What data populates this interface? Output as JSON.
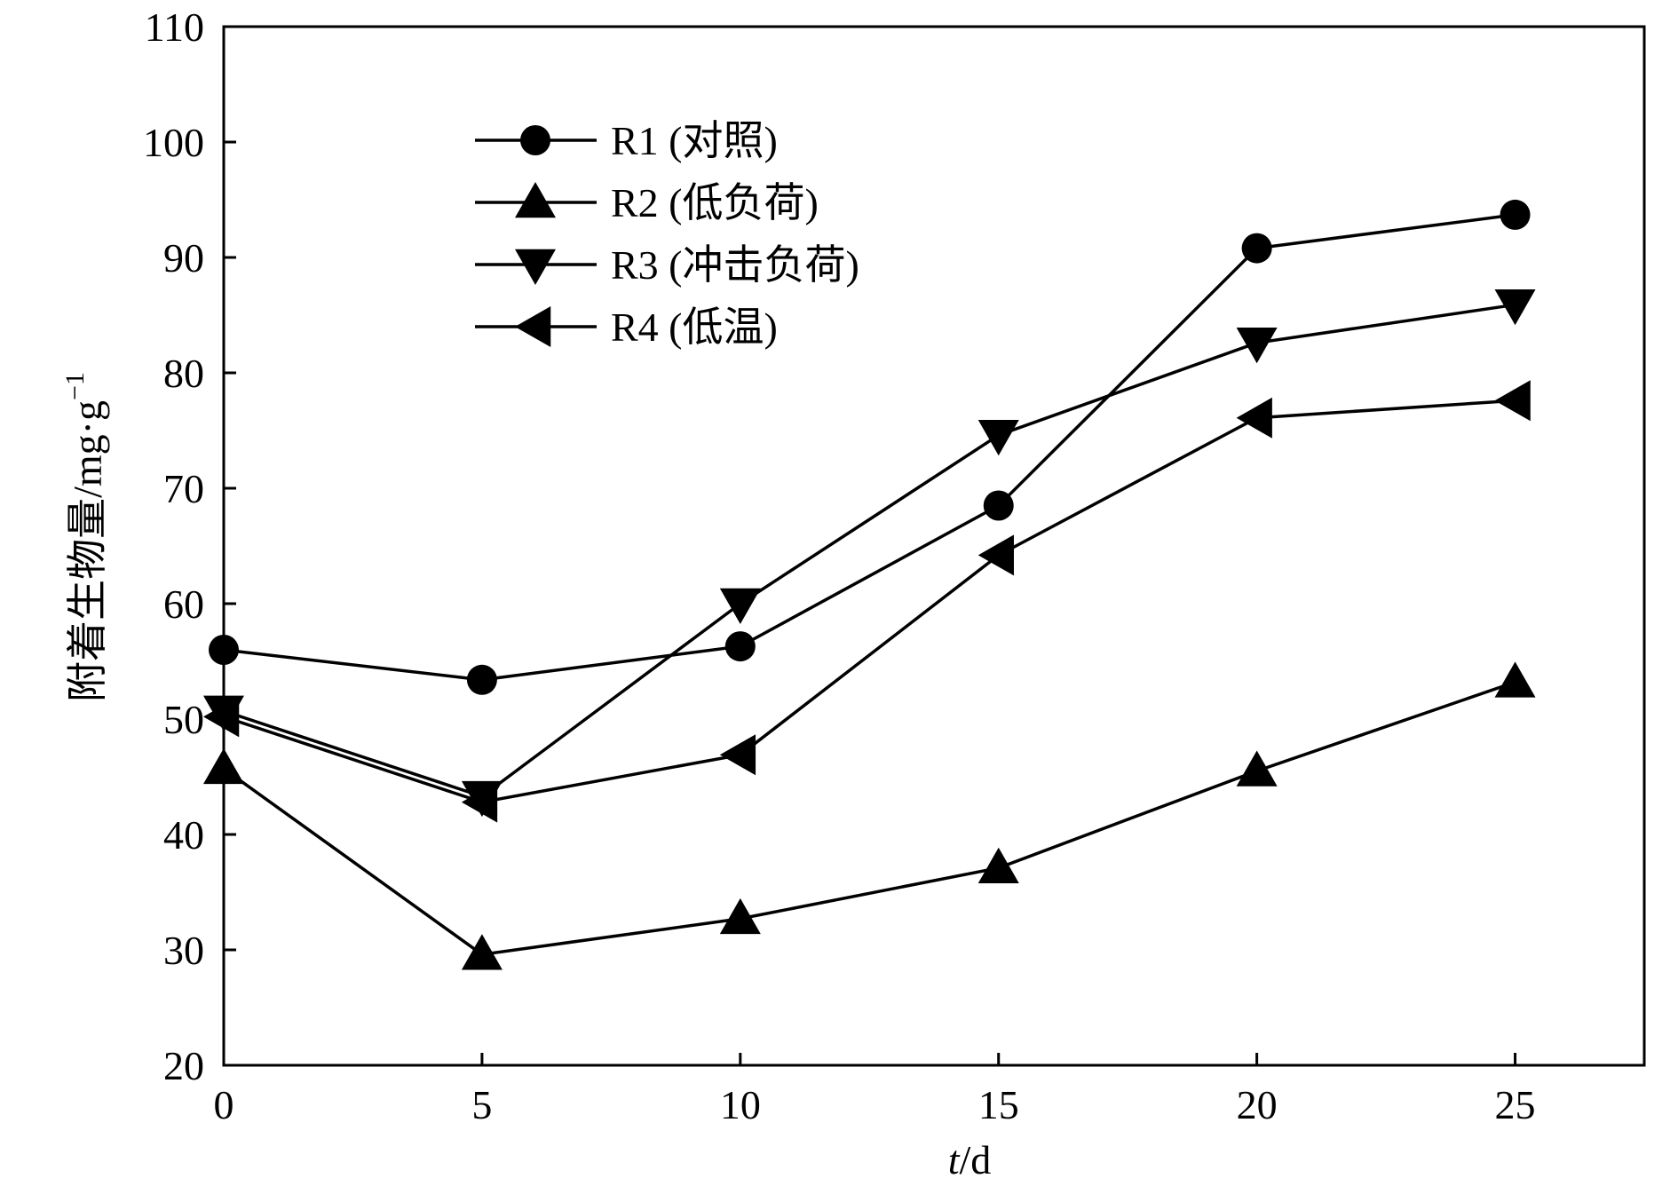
{
  "chart_data": {
    "type": "line",
    "title": "",
    "xlabel_italic": "t",
    "xlabel_rest": "/d",
    "ylabel_main": "附着生物量/mg·g",
    "ylabel_sup": "−1",
    "xlim": [
      0,
      27.5
    ],
    "ylim": [
      20,
      110
    ],
    "xticks": [
      0,
      5,
      10,
      15,
      20,
      25
    ],
    "yticks": [
      20,
      30,
      40,
      50,
      60,
      70,
      80,
      90,
      100,
      110
    ],
    "grid": false,
    "legend_position": "upper-left",
    "series": [
      {
        "name": "R1 (对照)",
        "marker": "circle",
        "x": [
          0,
          5,
          10,
          15,
          20,
          25
        ],
        "y": [
          56.0,
          53.4,
          56.3,
          68.5,
          90.8,
          93.7
        ]
      },
      {
        "name": "R2 (低负荷)",
        "marker": "triangle-up",
        "x": [
          0,
          5,
          10,
          15,
          20,
          25
        ],
        "y": [
          45.7,
          29.6,
          32.7,
          37.1,
          45.5,
          53.2
        ]
      },
      {
        "name": "R3 (冲击负荷)",
        "marker": "triangle-down",
        "x": [
          0,
          5,
          10,
          15,
          20,
          25
        ],
        "y": [
          50.7,
          43.3,
          60.0,
          74.6,
          82.6,
          85.9
        ]
      },
      {
        "name": "R4 (低温)",
        "marker": "triangle-left",
        "x": [
          0,
          5,
          10,
          15,
          20,
          25
        ],
        "y": [
          50.2,
          42.8,
          46.9,
          64.2,
          76.1,
          77.6
        ]
      }
    ]
  }
}
